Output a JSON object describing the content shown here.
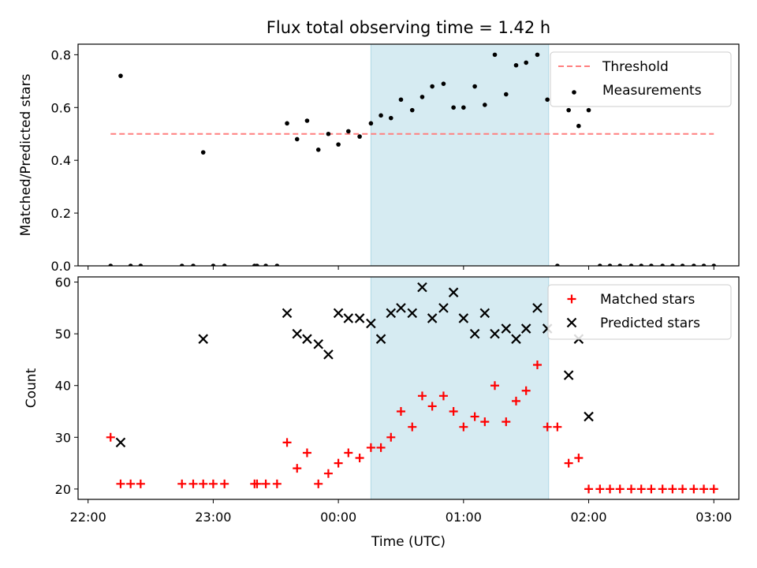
{
  "chart_data": {
    "title": "Flux total observing time = 1.42 h",
    "xlabel": "Time (UTC)",
    "xunit": "hours relative to 00:00 UTC",
    "xlim": [
      -2.08,
      3.2
    ],
    "xticks": [
      {
        "value": -2,
        "label": "22:00"
      },
      {
        "value": -1,
        "label": "23:00"
      },
      {
        "value": 0,
        "label": "00:00"
      },
      {
        "value": 1,
        "label": "01:00"
      },
      {
        "value": 2,
        "label": "02:00"
      },
      {
        "value": 3,
        "label": "03:00"
      }
    ],
    "highlight_span": {
      "x0": 0.26,
      "x1": 1.68,
      "color": "#add8e6",
      "alpha": 0.5
    },
    "panels": [
      {
        "type": "scatter",
        "ylabel": "Matched/Predicted stars",
        "ylim": [
          0,
          0.84
        ],
        "yticks": [
          0.0,
          0.2,
          0.4,
          0.6,
          0.8
        ],
        "ytick_labels": [
          "0.0",
          "0.2",
          "0.4",
          "0.6",
          "0.8"
        ],
        "legend_position": "top-right",
        "series": [
          {
            "name": "Threshold",
            "kind": "line",
            "style": "dashed",
            "color": "#ff7f7f",
            "x": [
              -1.82,
              3.0
            ],
            "y": [
              0.5,
              0.5
            ]
          },
          {
            "name": "Measurements",
            "kind": "scatter",
            "marker": "dot",
            "color": "#000000",
            "x": [
              -1.82,
              -1.74,
              -1.66,
              -1.58,
              -1.25,
              -1.16,
              -1.08,
              -1.0,
              -0.91,
              -0.67,
              -0.65,
              -0.58,
              -0.49,
              -0.41,
              -0.33,
              -0.25,
              -0.16,
              -0.08,
              0.0,
              0.08,
              0.17,
              0.26,
              0.34,
              0.42,
              0.5,
              0.59,
              0.67,
              0.75,
              0.84,
              0.92,
              1.0,
              1.09,
              1.17,
              1.25,
              1.34,
              1.42,
              1.5,
              1.59,
              1.67,
              1.75,
              1.84,
              1.92,
              2.0,
              2.09,
              2.17,
              2.25,
              2.34,
              2.42,
              2.5,
              2.59,
              2.67,
              2.75,
              2.84,
              2.92,
              3.0
            ],
            "y": [
              0.0,
              0.72,
              0.0,
              0.0,
              0.0,
              0.0,
              0.43,
              0.0,
              0.0,
              0.0,
              0.0,
              0.0,
              0.0,
              0.54,
              0.48,
              0.55,
              0.44,
              0.5,
              0.46,
              0.51,
              0.49,
              0.54,
              0.57,
              0.56,
              0.63,
              0.59,
              0.64,
              0.68,
              0.69,
              0.6,
              0.6,
              0.68,
              0.61,
              0.8,
              0.65,
              0.76,
              0.77,
              0.8,
              0.63,
              0.0,
              0.59,
              0.53,
              0.59,
              0.0,
              0.0,
              0.0,
              0.0,
              0.0,
              0.0,
              0.0,
              0.0,
              0.0,
              0.0,
              0.0,
              0.0
            ]
          }
        ]
      },
      {
        "type": "scatter",
        "ylabel": "Count",
        "ylim": [
          18,
          61
        ],
        "yticks": [
          20,
          30,
          40,
          50,
          60
        ],
        "ytick_labels": [
          "20",
          "30",
          "40",
          "50",
          "60"
        ],
        "legend_position": "top-right",
        "series": [
          {
            "name": "Matched stars",
            "kind": "scatter",
            "marker": "plus",
            "color": "#ff0000",
            "x": [
              -1.82,
              -1.74,
              -1.66,
              -1.58,
              -1.25,
              -1.16,
              -1.08,
              -1.0,
              -0.91,
              -0.67,
              -0.65,
              -0.58,
              -0.49,
              -0.41,
              -0.33,
              -0.25,
              -0.16,
              -0.08,
              0.0,
              0.08,
              0.17,
              0.26,
              0.34,
              0.42,
              0.5,
              0.59,
              0.67,
              0.75,
              0.84,
              0.92,
              1.0,
              1.09,
              1.17,
              1.25,
              1.34,
              1.42,
              1.5,
              1.59,
              1.67,
              1.75,
              1.84,
              1.92,
              2.0,
              2.09,
              2.17,
              2.25,
              2.34,
              2.42,
              2.5,
              2.59,
              2.67,
              2.75,
              2.84,
              2.92,
              3.0
            ],
            "y": [
              30,
              21,
              21,
              21,
              21,
              21,
              21,
              21,
              21,
              21,
              21,
              21,
              21,
              29,
              24,
              27,
              21,
              23,
              25,
              27,
              26,
              28,
              28,
              30,
              35,
              32,
              38,
              36,
              38,
              35,
              32,
              34,
              33,
              40,
              33,
              37,
              39,
              44,
              32,
              32,
              25,
              26,
              20,
              20,
              20,
              20,
              20,
              20,
              20,
              20,
              20,
              20,
              20,
              20,
              20
            ]
          },
          {
            "name": "Predicted stars",
            "kind": "scatter",
            "marker": "x",
            "color": "#000000",
            "x": [
              -1.74,
              -1.08,
              -0.41,
              -0.33,
              -0.25,
              -0.16,
              -0.08,
              0.0,
              0.08,
              0.17,
              0.26,
              0.34,
              0.42,
              0.5,
              0.59,
              0.67,
              0.75,
              0.84,
              0.92,
              1.0,
              1.09,
              1.17,
              1.25,
              1.34,
              1.42,
              1.5,
              1.59,
              1.67,
              1.84,
              1.92,
              2.0
            ],
            "y": [
              29,
              49,
              54,
              50,
              49,
              48,
              46,
              54,
              53,
              53,
              52,
              49,
              54,
              55,
              54,
              59,
              53,
              55,
              58,
              53,
              50,
              54,
              50,
              51,
              49,
              51,
              55,
              51,
              42,
              49,
              34
            ]
          }
        ]
      }
    ]
  }
}
